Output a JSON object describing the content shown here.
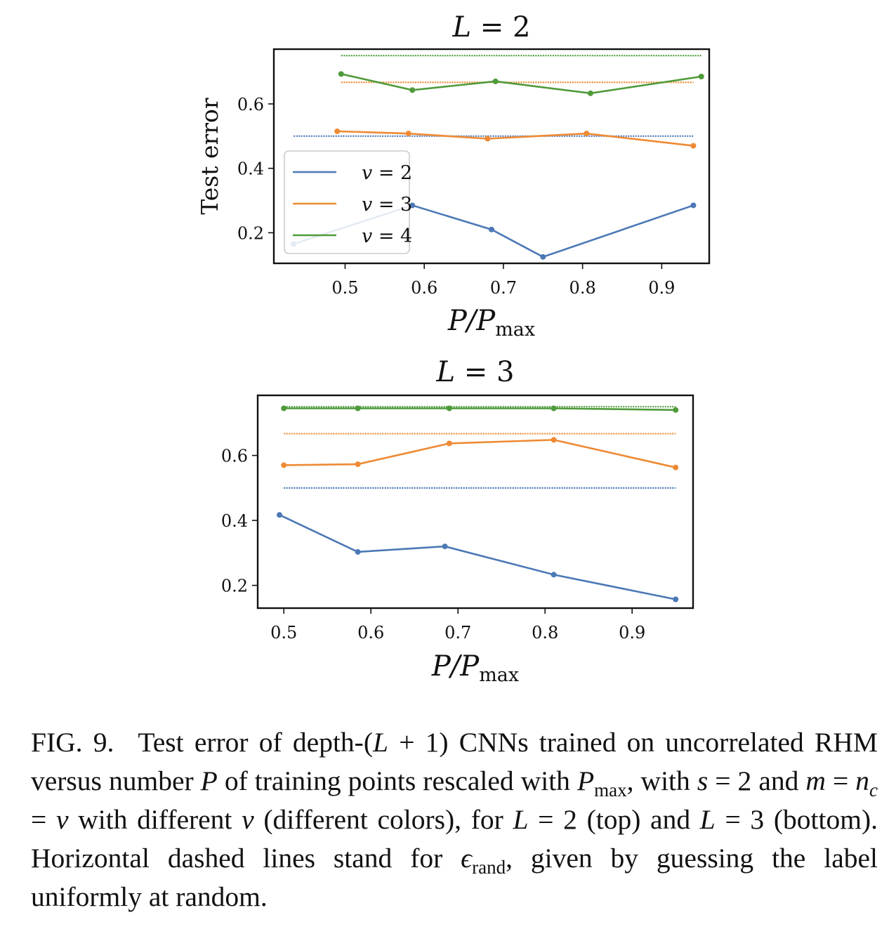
{
  "chart_data": [
    {
      "type": "line",
      "title": "L = 2",
      "title_var": "L",
      "title_rest": " = 2",
      "xlabel": "P/P_max",
      "xlabel_parts": {
        "a": "P/P",
        "sub": "max"
      },
      "ylabel": "Test error",
      "xlim": [
        0.41,
        0.96
      ],
      "ylim": [
        0.105,
        0.77
      ],
      "xticks": [
        0.5,
        0.6,
        0.7,
        0.8,
        0.9
      ],
      "xtick_labels": [
        "0.5",
        "0.6",
        "0.7",
        "0.8",
        "0.9"
      ],
      "yticks": [
        0.2,
        0.4,
        0.6
      ],
      "ytick_labels": [
        "0.2",
        "0.4",
        "0.6"
      ],
      "legend": {
        "position": "lower-left",
        "entries": [
          {
            "var": "v",
            "rest": " = 2",
            "color": "#4c78b5"
          },
          {
            "var": "v",
            "rest": " = 3",
            "color": "#ee8a34"
          },
          {
            "var": "v",
            "rest": " = 4",
            "color": "#4f9a3a"
          }
        ]
      },
      "series": [
        {
          "name": "v = 2",
          "color": "#4c78b5",
          "x": [
            0.435,
            0.585,
            0.685,
            0.75,
            0.94
          ],
          "y": [
            0.165,
            0.285,
            0.21,
            0.125,
            0.285
          ],
          "random": 0.5,
          "random_range": [
            0.435,
            0.94
          ]
        },
        {
          "name": "v = 3",
          "color": "#ee8a34",
          "x": [
            0.49,
            0.58,
            0.68,
            0.805,
            0.94
          ],
          "y": [
            0.515,
            0.508,
            0.492,
            0.508,
            0.47
          ],
          "random": 0.667,
          "random_range": [
            0.495,
            0.94
          ]
        },
        {
          "name": "v = 4",
          "color": "#4f9a3a",
          "x": [
            0.495,
            0.585,
            0.69,
            0.81,
            0.95
          ],
          "y": [
            0.693,
            0.643,
            0.67,
            0.633,
            0.685
          ],
          "random": 0.75,
          "random_range": [
            0.495,
            0.95
          ]
        }
      ]
    },
    {
      "type": "line",
      "title": "L = 3",
      "title_var": "L",
      "title_rest": " = 3",
      "xlabel": "P/P_max",
      "xlabel_parts": {
        "a": "P/P",
        "sub": "max"
      },
      "ylabel": "",
      "xlim": [
        0.47,
        0.97
      ],
      "ylim": [
        0.13,
        0.785
      ],
      "xticks": [
        0.5,
        0.6,
        0.7,
        0.8,
        0.9
      ],
      "xtick_labels": [
        "0.5",
        "0.6",
        "0.7",
        "0.8",
        "0.9"
      ],
      "yticks": [
        0.2,
        0.4,
        0.6
      ],
      "ytick_labels": [
        "0.2",
        "0.4",
        "0.6"
      ],
      "legend": null,
      "series": [
        {
          "name": "v = 2",
          "color": "#4c78b5",
          "x": [
            0.495,
            0.585,
            0.685,
            0.81,
            0.95
          ],
          "y": [
            0.417,
            0.303,
            0.32,
            0.233,
            0.157
          ],
          "random": 0.5,
          "random_range": [
            0.5,
            0.95
          ]
        },
        {
          "name": "v = 3",
          "color": "#ee8a34",
          "x": [
            0.5,
            0.585,
            0.69,
            0.81,
            0.95
          ],
          "y": [
            0.57,
            0.573,
            0.637,
            0.648,
            0.563
          ],
          "random": 0.667,
          "random_range": [
            0.5,
            0.95
          ]
        },
        {
          "name": "v = 4",
          "color": "#4f9a3a",
          "x": [
            0.5,
            0.585,
            0.69,
            0.81,
            0.95
          ],
          "y": [
            0.745,
            0.745,
            0.745,
            0.745,
            0.74
          ],
          "random": 0.75,
          "random_range": [
            0.5,
            0.95
          ]
        }
      ]
    }
  ],
  "caption": {
    "label": "FIG. 9.",
    "t1": "Test error of depth-(",
    "v_L1": "L",
    "t2": " + 1) CNNs trained on uncorrelated RHM versus number ",
    "v_P1": "P",
    "t3": " of training points rescaled with ",
    "v_P2": "P",
    "sub_max": "max",
    "t4": ", with ",
    "v_s": "s",
    "t5": " = 2 and ",
    "v_m": "m",
    "t6": " = ",
    "v_n": "n",
    "sub_c": "c",
    "t7": " = ",
    "v_v1": "v",
    "t8": " with different ",
    "v_v2": "v",
    "t9": " (different colors), for ",
    "v_L2": "L",
    "t10": " = 2 (top) and ",
    "v_L3": "L",
    "t11": " = 3 (bottom). Horizontal dashed lines stand for ",
    "v_eps": "ϵ",
    "sub_rand": "rand",
    "t12": ", given by guessing the label uniformly at random."
  }
}
